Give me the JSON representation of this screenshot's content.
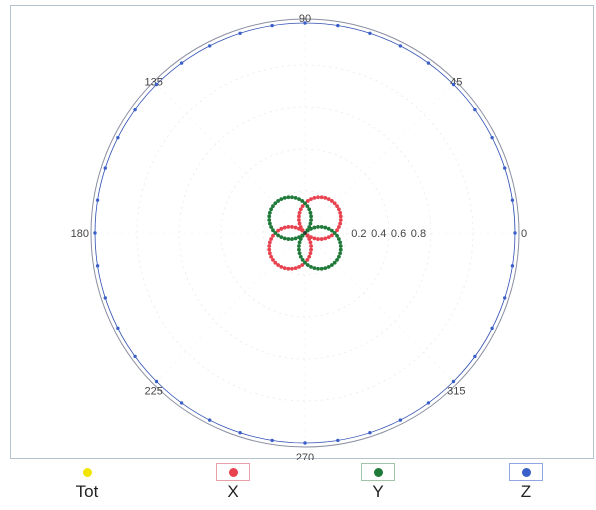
{
  "chart_data": {
    "type": "polar",
    "angle_unit": "degrees",
    "angle_labels": [
      "0",
      "45",
      "90",
      "135",
      "180",
      "225",
      "270",
      "315"
    ],
    "radial_labels": [
      "0.2",
      "0.4",
      "0.6",
      "0.8"
    ],
    "rlim": [
      0,
      1
    ],
    "grid": true,
    "series": [
      {
        "name": "Tot",
        "color": "#f2e600",
        "shape": "circle",
        "radius": 1.0,
        "points": []
      },
      {
        "name": "X",
        "color": "#e8424f",
        "shape": "figure-eight",
        "lobe_axis_deg": [
          45,
          225
        ],
        "peak": 0.2,
        "points": 40
      },
      {
        "name": "Y",
        "color": "#1f7a3a",
        "shape": "figure-eight",
        "lobe_axis_deg": [
          135,
          315
        ],
        "peak": 0.2,
        "points": 40
      },
      {
        "name": "Z",
        "color": "#3a5fc8",
        "shape": "circle",
        "radius": 1.0,
        "points": 40
      }
    ],
    "legend": {
      "placement": "bottom"
    }
  }
}
